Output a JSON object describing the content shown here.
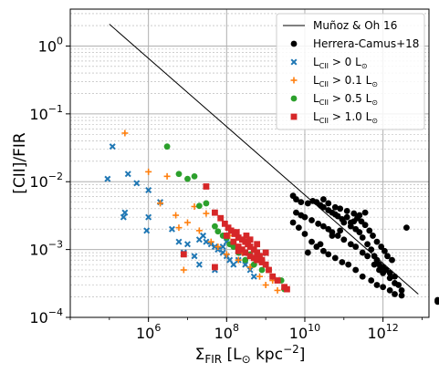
{
  "chart_data": {
    "type": "scatter",
    "xlabel": "Σ_FIR [L_⊙ kpc^−2]",
    "ylabel": "[CII]/FIR",
    "xscale": "log",
    "yscale": "log",
    "xlim": [
      10000,
      15000000000000.0
    ],
    "ylim": [
      0.0001,
      3.5
    ],
    "grid": true,
    "legend_position": "top-right",
    "x_ticks": [
      {
        "value": 1000000,
        "base": "10",
        "exp": "6"
      },
      {
        "value": 100000000,
        "base": "10",
        "exp": "8"
      },
      {
        "value": 10000000000,
        "base": "10",
        "exp": "10"
      },
      {
        "value": 1000000000000,
        "base": "10",
        "exp": "12"
      }
    ],
    "y_ticks": [
      {
        "value": 0.0001,
        "base": "10",
        "exp": "−4"
      },
      {
        "value": 0.001,
        "base": "10",
        "exp": "−3"
      },
      {
        "value": 0.01,
        "base": "10",
        "exp": "−2"
      },
      {
        "value": 0.1,
        "base": "10",
        "exp": "−1"
      },
      {
        "value": 1,
        "base": "10",
        "exp": "0"
      }
    ],
    "line": {
      "name": "Muñoz & Oh 16",
      "color": "#000000",
      "x": [
        100000,
        8000000000000.0
      ],
      "y": [
        2.1,
        0.00022
      ]
    },
    "series": [
      {
        "name": "Herrera-Camus+18",
        "marker": "circle",
        "color": "#000000",
        "points": [
          [
            5000000000.0,
            0.0062
          ],
          [
            6000000000.0,
            0.0055
          ],
          [
            8000000000.0,
            0.005
          ],
          [
            12000000000.0,
            0.0048
          ],
          [
            16000000000.0,
            0.0052
          ],
          [
            20000000000.0,
            0.005
          ],
          [
            25000000000.0,
            0.0045
          ],
          [
            30000000000.0,
            0.0042
          ],
          [
            40000000000.0,
            0.0038
          ],
          [
            50000000000.0,
            0.0035
          ],
          [
            60000000000.0,
            0.0033
          ],
          [
            70000000000.0,
            0.0031
          ],
          [
            90000000000.0,
            0.0028
          ],
          [
            100000000000.0,
            0.0025
          ],
          [
            120000000000.0,
            0.003
          ],
          [
            150000000000.0,
            0.0022
          ],
          [
            180000000000.0,
            0.0026
          ],
          [
            200000000000.0,
            0.002
          ],
          [
            250000000000.0,
            0.0018
          ],
          [
            300000000000.0,
            0.0015
          ],
          [
            350000000000.0,
            0.0035
          ],
          [
            400000000000.0,
            0.0012
          ],
          [
            500000000000.0,
            0.001
          ],
          [
            600000000000.0,
            0.0008
          ],
          [
            700000000000.0,
            0.0007
          ],
          [
            800000000000.0,
            0.0006
          ],
          [
            1000000000000.0,
            0.00055
          ],
          [
            1200000000000.0,
            0.0005
          ],
          [
            1500000000000.0,
            0.00045
          ],
          [
            2000000000000.0,
            0.0004
          ],
          [
            2500000000000.0,
            0.0003
          ],
          [
            3000000000000.0,
            0.00025
          ],
          [
            25000000000000.0,
            0.00017
          ],
          [
            25000000000000.0,
            0.00018
          ],
          [
            6000000000.0,
            0.0035
          ],
          [
            8000000000.0,
            0.0032
          ],
          [
            10000000000.0,
            0.003
          ],
          [
            15000000000.0,
            0.0027
          ],
          [
            22000000000.0,
            0.0024
          ],
          [
            30000000000.0,
            0.0022
          ],
          [
            40000000000.0,
            0.002
          ],
          [
            50000000000.0,
            0.0018
          ],
          [
            70000000000.0,
            0.0016
          ],
          [
            100000000000.0,
            0.0014
          ],
          [
            150000000000.0,
            0.0012
          ],
          [
            200000000000.0,
            0.0011
          ],
          [
            300000000000.0,
            0.0009
          ],
          [
            400000000000.0,
            0.0008
          ],
          [
            600000000000.0,
            0.0006
          ],
          [
            800000000000.0,
            0.0005
          ],
          [
            1000000000000.0,
            0.00045
          ],
          [
            1500000000000.0,
            0.00038
          ],
          [
            2000000000000.0,
            0.00032
          ],
          [
            5000000000.0,
            0.0025
          ],
          [
            7000000000.0,
            0.0021
          ],
          [
            10000000000.0,
            0.0017
          ],
          [
            15000000000.0,
            0.0013
          ],
          [
            20000000000.0,
            0.0011
          ],
          [
            30000000000.0,
            0.00095
          ],
          [
            40000000000.0,
            0.00085
          ],
          [
            60000000000.0,
            0.00075
          ],
          [
            90000000000.0,
            0.00065
          ],
          [
            130000000000.0,
            0.0006
          ],
          [
            200000000000.0,
            0.0005
          ],
          [
            300000000000.0,
            0.0004
          ],
          [
            500000000000.0,
            0.00035
          ],
          [
            700000000000.0,
            0.0003
          ],
          [
            1000000000000.0,
            0.00028
          ],
          [
            1500000000000.0,
            0.00025
          ],
          [
            2000000000000.0,
            0.00022
          ],
          [
            3000000000000.0,
            0.00021
          ],
          [
            4000000000000.0,
            0.0021
          ],
          [
            12000000000.0,
            0.0009
          ],
          [
            25000000000.0,
            0.0012
          ],
          [
            50000000000.0,
            0.0016
          ],
          [
            80000000000.0,
            0.0019
          ],
          [
            150000000000.0,
            0.0025
          ],
          [
            250000000000.0,
            0.0032
          ],
          [
            30000000000.0,
            0.0055
          ],
          [
            40000000000.0,
            0.0048
          ],
          [
            60000000000.0,
            0.0042
          ],
          [
            80000000000.0,
            0.004
          ],
          [
            120000000000.0,
            0.0037
          ],
          [
            180000000000.0,
            0.0034
          ],
          [
            220000000000.0,
            0.0029
          ],
          [
            280000000000.0,
            0.0026
          ],
          [
            350000000000.0,
            0.0023
          ],
          [
            450000000000.0,
            0.0019
          ],
          [
            550000000000.0,
            0.0016
          ],
          [
            700000000000.0,
            0.0013
          ],
          [
            900000000000.0,
            0.0011
          ],
          [
            1100000000000.0,
            0.00095
          ],
          [
            1300000000000.0,
            0.0008
          ],
          [
            1700000000000.0,
            0.0007
          ]
        ]
      },
      {
        "name": "L_CII > 0 L_⊙",
        "marker": "x",
        "color": "#1f77b4",
        "points": [
          [
            120000,
            0.033
          ],
          [
            90000,
            0.011
          ],
          [
            250000,
            0.0035
          ],
          [
            230000,
            0.003
          ],
          [
            300000,
            0.013
          ],
          [
            500000,
            0.0095
          ],
          [
            1000000.0,
            0.0075
          ],
          [
            1000000.0,
            0.003
          ],
          [
            900000,
            0.0019
          ],
          [
            2000000.0,
            0.005
          ],
          [
            4000000.0,
            0.002
          ],
          [
            6000000.0,
            0.0013
          ],
          [
            8000000.0,
            0.0009
          ],
          [
            15000000.0,
            0.0008
          ],
          [
            20000000.0,
            0.0006
          ],
          [
            30000000.0,
            0.0013
          ],
          [
            40000000.0,
            0.0012
          ],
          [
            50000000.0,
            0.0011
          ],
          [
            60000000.0,
            0.001
          ],
          [
            80000000.0,
            0.0009
          ],
          [
            100000000.0,
            0.0008
          ],
          [
            120000000.0,
            0.0007
          ],
          [
            150000000.0,
            0.0006
          ],
          [
            200000000.0,
            0.0007
          ],
          [
            250000000.0,
            0.0009
          ],
          [
            300000000.0,
            0.0006
          ],
          [
            400000000.0,
            0.0005
          ],
          [
            500000000.0,
            0.0004
          ],
          [
            20000000.0,
            0.0014
          ],
          [
            25000000.0,
            0.0016
          ],
          [
            10000000.0,
            0.0012
          ],
          [
            50000000.0,
            0.0005
          ],
          [
            80000000.0,
            0.0011
          ],
          [
            100000000.0,
            0.0013
          ]
        ]
      },
      {
        "name": "L_CII > 0.1 L_⊙",
        "marker": "plus",
        "color": "#ff7f0e",
        "points": [
          [
            250000,
            0.052
          ],
          [
            1000000.0,
            0.014
          ],
          [
            3000000.0,
            0.012
          ],
          [
            2000000.0,
            0.0048
          ],
          [
            5000000.0,
            0.0032
          ],
          [
            10000000.0,
            0.0025
          ],
          [
            20000000.0,
            0.0019
          ],
          [
            40000000.0,
            0.0013
          ],
          [
            60000000.0,
            0.0011
          ],
          [
            100000000.0,
            0.00085
          ],
          [
            200000000.0,
            0.0007
          ],
          [
            400000000.0,
            0.00055
          ],
          [
            700000000.0,
            0.0004
          ],
          [
            1000000000.0,
            0.0003
          ],
          [
            2000000000.0,
            0.00025
          ],
          [
            8000000.0,
            0.0005
          ],
          [
            15000000.0,
            0.0043
          ],
          [
            30000000.0,
            0.0034
          ],
          [
            6000000.0,
            0.0021
          ],
          [
            120000000.0,
            0.0016
          ],
          [
            250000000.0,
            0.0009
          ],
          [
            500000000.0,
            0.0006
          ],
          [
            1500000000.0,
            0.00035
          ]
        ]
      },
      {
        "name": "L_CII > 0.5 L_⊙",
        "marker": "circle",
        "color": "#2ca02c",
        "points": [
          [
            3000000.0,
            0.033
          ],
          [
            6000000.0,
            0.013
          ],
          [
            10000000.0,
            0.011
          ],
          [
            15000000.0,
            0.012
          ],
          [
            20000000.0,
            0.0044
          ],
          [
            30000000.0,
            0.0048
          ],
          [
            50000000.0,
            0.0022
          ],
          [
            80000000.0,
            0.0016
          ],
          [
            120000000.0,
            0.0012
          ],
          [
            200000000.0,
            0.0009
          ],
          [
            300000000.0,
            0.0007
          ],
          [
            500000000.0,
            0.0006
          ],
          [
            800000000.0,
            0.0005
          ],
          [
            1500000000.0,
            0.0004
          ],
          [
            3000000000.0,
            0.00026
          ],
          [
            60000000.0,
            0.00185
          ],
          [
            100000000.0,
            0.0015
          ],
          [
            150000000.0,
            0.0011
          ],
          [
            400000000.0,
            0.00085
          ],
          [
            700000000.0,
            0.0007
          ],
          [
            1200000000.0,
            0.0005
          ],
          [
            2500000000.0,
            0.00035
          ]
        ]
      },
      {
        "name": "L_CII > 1.0 L_⊙",
        "marker": "square",
        "color": "#d62728",
        "points": [
          [
            8000000.0,
            0.00085
          ],
          [
            30000000.0,
            0.0085
          ],
          [
            50000000.0,
            0.0035
          ],
          [
            70000000.0,
            0.0029
          ],
          [
            90000000.0,
            0.0024
          ],
          [
            110000000.0,
            0.0021
          ],
          [
            130000000.0,
            0.0019
          ],
          [
            160000000.0,
            0.0017
          ],
          [
            200000000.0,
            0.0015
          ],
          [
            250000000.0,
            0.0014
          ],
          [
            300000000.0,
            0.0013
          ],
          [
            350000000.0,
            0.0012
          ],
          [
            400000000.0,
            0.0011
          ],
          [
            500000000.0,
            0.001
          ],
          [
            600000000.0,
            0.0009
          ],
          [
            700000000.0,
            0.0008
          ],
          [
            800000000.0,
            0.0007
          ],
          [
            1000000000.0,
            0.0006
          ],
          [
            1200000000.0,
            0.0005
          ],
          [
            1500000000.0,
            0.0004
          ],
          [
            2000000000.0,
            0.00035
          ],
          [
            3000000000.0,
            0.00028
          ],
          [
            3500000000.0,
            0.00026
          ],
          [
            100000000.0,
            0.0016
          ],
          [
            150000000.0,
            0.0013
          ],
          [
            200000000.0,
            0.0011
          ],
          [
            250000000.0,
            0.001
          ],
          [
            300000000.0,
            0.0009
          ],
          [
            400000000.0,
            0.0008
          ],
          [
            500000000.0,
            0.00075
          ],
          [
            600000000.0,
            0.0007
          ],
          [
            800000000.0,
            0.00065
          ],
          [
            50000000.0,
            0.00055
          ],
          [
            200000000.0,
            0.00095
          ],
          [
            400000000.0,
            0.0014
          ],
          [
            1000000000.0,
            0.0009
          ],
          [
            180000000.0,
            0.0018
          ],
          [
            320000000.0,
            0.0016
          ],
          [
            600000000.0,
            0.0012
          ]
        ]
      }
    ]
  },
  "legend": {
    "items": [
      {
        "label": "Muñoz & Oh 16",
        "sub": "",
        "tail": ""
      },
      {
        "label": "Herrera-Camus+18",
        "sub": "",
        "tail": ""
      },
      {
        "label": "L",
        "sub": "CII",
        "tail": " > 0 L"
      },
      {
        "label": "L",
        "sub": "CII",
        "tail": " > 0.1 L"
      },
      {
        "label": "L",
        "sub": "CII",
        "tail": " > 0.5 L"
      },
      {
        "label": "L",
        "sub": "CII",
        "tail": " > 1.0 L"
      }
    ],
    "sun_symbol": "⊙"
  },
  "axis_titles": {
    "y": "[CII]/FIR",
    "x_main": "Σ",
    "x_sub": "FIR",
    "x_unit_open": " [L",
    "x_unit_sun": "⊙",
    "x_unit_mid": " kpc",
    "x_unit_sup": "−2",
    "x_unit_close": "]"
  }
}
